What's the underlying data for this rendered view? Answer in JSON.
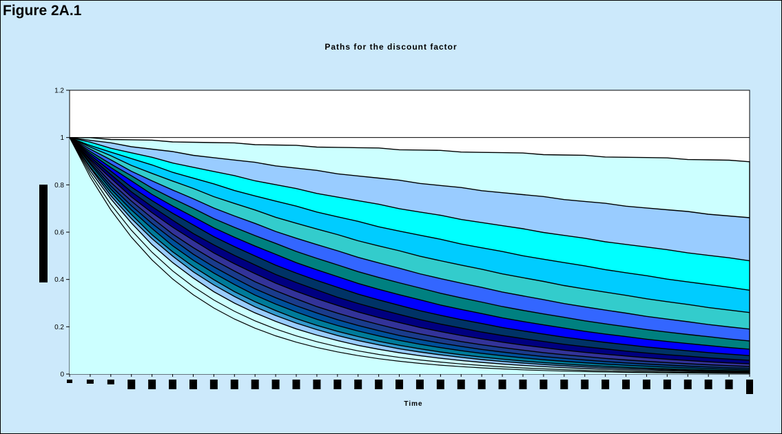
{
  "figure_label": "Figure 2A.1",
  "chart_data": {
    "type": "area",
    "title": "Paths for the discount factor",
    "xlabel": "Time",
    "ylabel": "",
    "ylim": [
      0,
      1.2
    ],
    "yticks": [
      "0",
      "0.2",
      "0.4",
      "0.6",
      "0.8",
      "1",
      "1.2"
    ],
    "x_count": 34,
    "grid": "horizontal at 1",
    "legend": "none",
    "series": [
      {
        "color": "#ccffff",
        "end": 0.9
      },
      {
        "color": "#99ccff",
        "end": 0.66
      },
      {
        "color": "#00ffff",
        "end": 0.48
      },
      {
        "color": "#00ccff",
        "end": 0.355
      },
      {
        "color": "#33cccc",
        "end": 0.26
      },
      {
        "color": "#3366ff",
        "end": 0.19
      },
      {
        "color": "#008080",
        "end": 0.14
      },
      {
        "color": "#0000ff",
        "end": 0.105
      },
      {
        "color": "#003366",
        "end": 0.078
      },
      {
        "color": "#000080",
        "end": 0.058
      },
      {
        "color": "#333399",
        "end": 0.043
      },
      {
        "color": "#1a3c8c",
        "end": 0.032
      },
      {
        "color": "#00509a",
        "end": 0.024
      },
      {
        "color": "#007b9a",
        "end": 0.018
      },
      {
        "color": "#3399cc",
        "end": 0.013
      },
      {
        "color": "#99ccff",
        "end": 0.01
      },
      {
        "color": "#ccffff",
        "end": 0.007
      }
    ]
  }
}
